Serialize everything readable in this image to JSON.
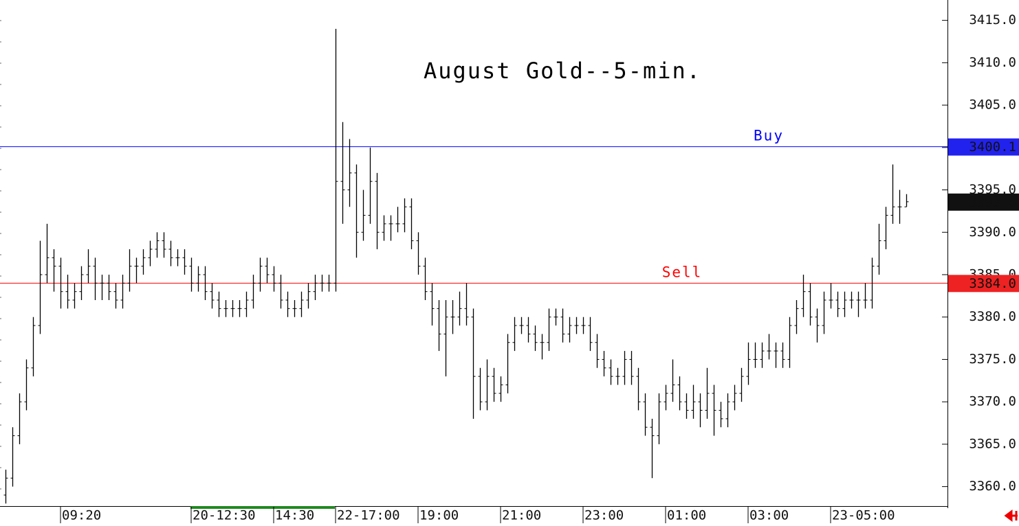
{
  "chart_data": {
    "type": "ohlc",
    "title": "August Gold--5-min.",
    "categories": [
      null,
      null,
      null,
      null,
      null,
      null,
      null,
      null,
      "09:20",
      null,
      null,
      null,
      null,
      null,
      null,
      null,
      null,
      null,
      null,
      null,
      null,
      null,
      null,
      null,
      null,
      null,
      null,
      "20-12:30",
      null,
      null,
      null,
      null,
      null,
      null,
      null,
      null,
      null,
      null,
      null,
      "14:30",
      null,
      null,
      null,
      null,
      null,
      null,
      null,
      null,
      "22-17:00",
      null,
      null,
      null,
      null,
      null,
      null,
      null,
      null,
      null,
      null,
      null,
      "19:00",
      null,
      null,
      null,
      null,
      null,
      null,
      null,
      null,
      null,
      null,
      null,
      "21:00",
      null,
      null,
      null,
      null,
      null,
      null,
      null,
      null,
      null,
      null,
      null,
      "23:00",
      null,
      null,
      null,
      null,
      null,
      null,
      null,
      null,
      null,
      null,
      null,
      "01:00",
      null,
      null,
      null,
      null,
      null,
      null,
      null,
      null,
      null,
      null,
      null,
      "03:00",
      null,
      null,
      null,
      null,
      null,
      null,
      null,
      null,
      null,
      null,
      null,
      "23-05:00",
      null,
      null,
      null,
      null,
      null,
      null,
      null,
      null,
      null,
      null,
      null
    ],
    "open": [
      3359,
      3361,
      3366,
      3370,
      3374,
      3379,
      3385,
      3387,
      3386,
      3383,
      3382,
      3383,
      3385,
      3386,
      3384,
      3384,
      3383,
      3382,
      3384,
      3386,
      3386,
      3387,
      3388,
      3389,
      3388,
      3387,
      3387,
      3386,
      3384,
      3385,
      3383,
      3382,
      3381,
      3381,
      3381,
      3381,
      3382,
      3384,
      3386,
      3385,
      3384,
      3382,
      3381,
      3381,
      3382,
      3383,
      3384,
      3384,
      3384,
      3396,
      3395,
      3397,
      3390,
      3392,
      3396,
      3390,
      3391,
      3391,
      3391,
      3393,
      3389,
      3386,
      3383,
      3381,
      3378,
      3380,
      3380,
      3381,
      3380,
      3373,
      3370,
      3373,
      3371,
      3372,
      3377,
      3379,
      3379,
      3378,
      3377,
      3377,
      3380,
      3380,
      3378,
      3379,
      3379,
      3379,
      3377,
      3375,
      3374,
      3373,
      3373,
      3375,
      3373,
      3370,
      3367,
      3366,
      3370,
      3371,
      3372,
      3370,
      3369,
      3370,
      3369,
      3371,
      3369,
      3368,
      3370,
      3371,
      3373,
      3375,
      3375,
      3376,
      3376,
      3376,
      3375,
      3379,
      3381,
      3383,
      3380,
      3379,
      3382,
      3382,
      3381,
      3382,
      3382,
      3382,
      3382,
      3386,
      3389,
      3392,
      3393,
      3393
    ],
    "high": [
      3362,
      3367,
      3371,
      3375,
      3380,
      3389,
      3391,
      3388,
      3387,
      3385,
      3384,
      3386,
      3388,
      3387,
      3385,
      3385,
      3384,
      3385,
      3388,
      3387,
      3388,
      3389,
      3390,
      3390,
      3389,
      3388,
      3388,
      3387,
      3386,
      3386,
      3384,
      3383,
      3382,
      3382,
      3382,
      3383,
      3385,
      3387,
      3387,
      3386,
      3385,
      3383,
      3382,
      3383,
      3384,
      3385,
      3385,
      3385,
      3414,
      3403,
      3401,
      3398,
      3395,
      3400,
      3397,
      3392,
      3392,
      3393,
      3394,
      3394,
      3390,
      3387,
      3384,
      3382,
      3382,
      3382,
      3383,
      3384,
      3381,
      3374,
      3375,
      3374,
      3373,
      3378,
      3380,
      3380,
      3380,
      3379,
      3378,
      3381,
      3381,
      3381,
      3380,
      3380,
      3380,
      3380,
      3378,
      3376,
      3375,
      3374,
      3376,
      3376,
      3374,
      3371,
      3368,
      3371,
      3372,
      3375,
      3373,
      3371,
      3372,
      3371,
      3374,
      3372,
      3370,
      3371,
      3372,
      3374,
      3377,
      3377,
      3377,
      3378,
      3377,
      3377,
      3380,
      3382,
      3385,
      3384,
      3381,
      3383,
      3384,
      3383,
      3383,
      3383,
      3383,
      3384,
      3387,
      3391,
      3393,
      3398,
      3395,
      3394.5
    ],
    "low": [
      3358,
      3360,
      3365,
      3369,
      3373,
      3378,
      3384,
      3383,
      3381,
      3381,
      3381,
      3382,
      3384,
      3382,
      3382,
      3382,
      3381,
      3381,
      3383,
      3384,
      3385,
      3386,
      3387,
      3387,
      3386,
      3386,
      3385,
      3383,
      3383,
      3382,
      3381,
      3380,
      3380,
      3380,
      3380,
      3380,
      3381,
      3383,
      3384,
      3383,
      3381,
      3380,
      3380,
      3380,
      3381,
      3382,
      3383,
      3383,
      3383,
      3391,
      3393,
      3387,
      3389,
      3391,
      3388,
      3389,
      3389,
      3390,
      3390,
      3388,
      3385,
      3382,
      3379,
      3376,
      3373,
      3378,
      3379,
      3379,
      3368,
      3369,
      3369,
      3370,
      3370,
      3371,
      3376,
      3378,
      3377,
      3376,
      3375,
      3376,
      3379,
      3377,
      3377,
      3378,
      3378,
      3376,
      3374,
      3373,
      3372,
      3372,
      3372,
      3372,
      3369,
      3366,
      3361,
      3365,
      3369,
      3370,
      3369,
      3368,
      3368,
      3367,
      3368,
      3366,
      3367,
      3367,
      3369,
      3370,
      3372,
      3374,
      3374,
      3375,
      3374,
      3374,
      3374,
      3378,
      3380,
      3379,
      3377,
      3378,
      3381,
      3380,
      3380,
      3381,
      3380,
      3381,
      3381,
      3385,
      3388,
      3391,
      3391,
      3393
    ],
    "close": [
      3361,
      3366,
      3370,
      3374,
      3379,
      3385,
      3387,
      3386,
      3383,
      3382,
      3383,
      3385,
      3386,
      3384,
      3384,
      3383,
      3382,
      3384,
      3386,
      3386,
      3387,
      3388,
      3389,
      3388,
      3387,
      3387,
      3386,
      3384,
      3385,
      3383,
      3382,
      3381,
      3381,
      3381,
      3381,
      3382,
      3384,
      3386,
      3385,
      3384,
      3382,
      3381,
      3381,
      3382,
      3383,
      3384,
      3384,
      3384,
      3396,
      3395,
      3397,
      3390,
      3392,
      3396,
      3390,
      3391,
      3391,
      3391,
      3393,
      3389,
      3386,
      3383,
      3381,
      3378,
      3380,
      3380,
      3381,
      3380,
      3373,
      3370,
      3373,
      3371,
      3372,
      3377,
      3379,
      3379,
      3378,
      3377,
      3377,
      3380,
      3380,
      3378,
      3379,
      3379,
      3379,
      3377,
      3375,
      3374,
      3373,
      3373,
      3375,
      3373,
      3370,
      3367,
      3366,
      3370,
      3371,
      3372,
      3370,
      3369,
      3370,
      3369,
      3371,
      3369,
      3368,
      3370,
      3371,
      3373,
      3375,
      3375,
      3376,
      3376,
      3376,
      3375,
      3379,
      3381,
      3383,
      3380,
      3379,
      3382,
      3382,
      3381,
      3382,
      3382,
      3382,
      3382,
      3386,
      3389,
      3392,
      3393,
      3393,
      3393.6
    ],
    "color": "#000000",
    "ylim": [
      3357.7,
      3417.4
    ],
    "yticks": [
      {
        "value": 3360,
        "label": "3360.0"
      },
      {
        "value": 3365,
        "label": "3365.0"
      },
      {
        "value": 3370,
        "label": "3370.0"
      },
      {
        "value": 3375,
        "label": "3375.0"
      },
      {
        "value": 3380,
        "label": "3380.0"
      },
      {
        "value": 3385,
        "label": "3385.0"
      },
      {
        "value": 3390,
        "label": "3390.0"
      },
      {
        "value": 3395,
        "label": "3395.0"
      },
      {
        "value": 3400,
        "label": "3400.0"
      },
      {
        "value": 3405,
        "label": "3405.0"
      },
      {
        "value": 3410,
        "label": "3410.0"
      },
      {
        "value": 3415,
        "label": "3415.0"
      }
    ],
    "lines": [
      {
        "name": "Buy",
        "value": 3400.1,
        "color": "#0000ff",
        "box_color": "#2222ee"
      },
      {
        "name": "Sell",
        "value": 3384.0,
        "value_label": "3384.0",
        "color": "#ff0000",
        "box_color": "#ee2222"
      }
    ],
    "last": {
      "value": 3393.6,
      "color": "#111111"
    }
  }
}
